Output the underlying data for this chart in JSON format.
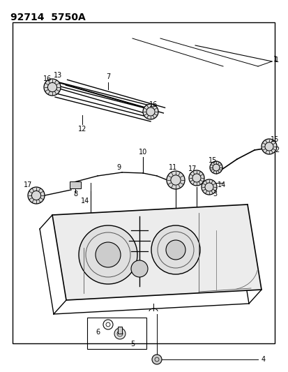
{
  "title": "92714  5750A",
  "bg_color": "#ffffff",
  "line_color": "#000000",
  "fig_w": 4.14,
  "fig_h": 5.33,
  "dpi": 100
}
